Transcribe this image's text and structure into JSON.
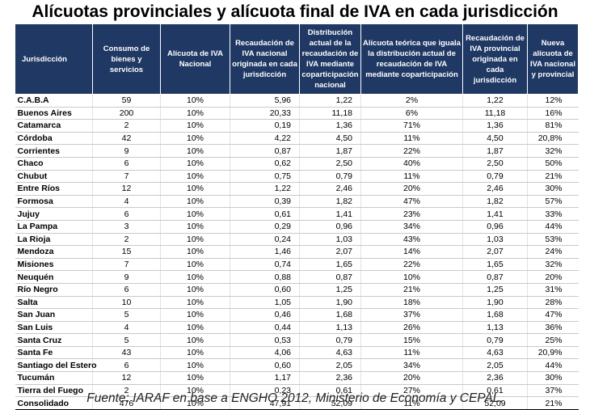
{
  "title": "Alícuotas provinciales y alícuota final de IVA en cada jurisdicción",
  "headers": [
    "Jurisdicción",
    "Consumo de bienes y servicios",
    "Alícuota de IVA Nacional",
    "Recaudación de IVA nacional originada en cada jurisdicción",
    "Distribución actual de la recaudación de IVA mediante coparticipación nacional",
    "Alícuota teórica que iguala la distribución actual de recaudación de IVA mediante coparticipación",
    "Recaudación de IVA provincial originada en cada jurisdicción",
    "Nueva alícuota de IVA nacional y provincial"
  ],
  "rows": [
    {
      "name": "C.A.B.A",
      "consumo": "59",
      "alicuota": "10%",
      "recaudacion": "5,96",
      "distribucion": "1,22",
      "teorica": "2%",
      "provincial": "1,22",
      "nueva": "12%"
    },
    {
      "name": "Buenos Aires",
      "consumo": "200",
      "alicuota": "10%",
      "recaudacion": "20,33",
      "distribucion": "11,18",
      "teorica": "6%",
      "provincial": "11,18",
      "nueva": "16%"
    },
    {
      "name": "Catamarca",
      "consumo": "2",
      "alicuota": "10%",
      "recaudacion": "0,19",
      "distribucion": "1,36",
      "teorica": "71%",
      "provincial": "1,36",
      "nueva": "81%"
    },
    {
      "name": "Córdoba",
      "consumo": "42",
      "alicuota": "10%",
      "recaudacion": "4,22",
      "distribucion": "4,50",
      "teorica": "11%",
      "provincial": "4,50",
      "nueva": "20,8%"
    },
    {
      "name": "Corrientes",
      "consumo": "9",
      "alicuota": "10%",
      "recaudacion": "0,87",
      "distribucion": "1,87",
      "teorica": "22%",
      "provincial": "1,87",
      "nueva": "32%"
    },
    {
      "name": "Chaco",
      "consumo": "6",
      "alicuota": "10%",
      "recaudacion": "0,62",
      "distribucion": "2,50",
      "teorica": "40%",
      "provincial": "2,50",
      "nueva": "50%"
    },
    {
      "name": "Chubut",
      "consumo": "7",
      "alicuota": "10%",
      "recaudacion": "0,75",
      "distribucion": "0,79",
      "teorica": "11%",
      "provincial": "0,79",
      "nueva": "21%"
    },
    {
      "name": "Entre Ríos",
      "consumo": "12",
      "alicuota": "10%",
      "recaudacion": "1,22",
      "distribucion": "2,46",
      "teorica": "20%",
      "provincial": "2,46",
      "nueva": "30%"
    },
    {
      "name": "Formosa",
      "consumo": "4",
      "alicuota": "10%",
      "recaudacion": "0,39",
      "distribucion": "1,82",
      "teorica": "47%",
      "provincial": "1,82",
      "nueva": "57%"
    },
    {
      "name": "Jujuy",
      "consumo": "6",
      "alicuota": "10%",
      "recaudacion": "0,61",
      "distribucion": "1,41",
      "teorica": "23%",
      "provincial": "1,41",
      "nueva": "33%"
    },
    {
      "name": "La Pampa",
      "consumo": "3",
      "alicuota": "10%",
      "recaudacion": "0,29",
      "distribucion": "0,96",
      "teorica": "34%",
      "provincial": "0,96",
      "nueva": "44%"
    },
    {
      "name": "La Rioja",
      "consumo": "2",
      "alicuota": "10%",
      "recaudacion": "0,24",
      "distribucion": "1,03",
      "teorica": "43%",
      "provincial": "1,03",
      "nueva": "53%"
    },
    {
      "name": "Mendoza",
      "consumo": "15",
      "alicuota": "10%",
      "recaudacion": "1,46",
      "distribucion": "2,07",
      "teorica": "14%",
      "provincial": "2,07",
      "nueva": "24%"
    },
    {
      "name": "Misiones",
      "consumo": "7",
      "alicuota": "10%",
      "recaudacion": "0,74",
      "distribucion": "1,65",
      "teorica": "22%",
      "provincial": "1,65",
      "nueva": "32%"
    },
    {
      "name": "Neuquén",
      "consumo": "9",
      "alicuota": "10%",
      "recaudacion": "0,88",
      "distribucion": "0,87",
      "teorica": "10%",
      "provincial": "0,87",
      "nueva": "20%"
    },
    {
      "name": "Río Negro",
      "consumo": "6",
      "alicuota": "10%",
      "recaudacion": "0,60",
      "distribucion": "1,25",
      "teorica": "21%",
      "provincial": "1,25",
      "nueva": "31%"
    },
    {
      "name": "Salta",
      "consumo": "10",
      "alicuota": "10%",
      "recaudacion": "1,05",
      "distribucion": "1,90",
      "teorica": "18%",
      "provincial": "1,90",
      "nueva": "28%"
    },
    {
      "name": "San Juan",
      "consumo": "5",
      "alicuota": "10%",
      "recaudacion": "0,46",
      "distribucion": "1,68",
      "teorica": "37%",
      "provincial": "1,68",
      "nueva": "47%"
    },
    {
      "name": "San Luis",
      "consumo": "4",
      "alicuota": "10%",
      "recaudacion": "0,44",
      "distribucion": "1,13",
      "teorica": "26%",
      "provincial": "1,13",
      "nueva": "36%"
    },
    {
      "name": "Santa Cruz",
      "consumo": "5",
      "alicuota": "10%",
      "recaudacion": "0,53",
      "distribucion": "0,79",
      "teorica": "15%",
      "provincial": "0,79",
      "nueva": "25%"
    },
    {
      "name": "Santa Fe",
      "consumo": "43",
      "alicuota": "10%",
      "recaudacion": "4,06",
      "distribucion": "4,63",
      "teorica": "11%",
      "provincial": "4,63",
      "nueva": "20,9%"
    },
    {
      "name": "Santiago del Estero",
      "consumo": "6",
      "alicuota": "10%",
      "recaudacion": "0,60",
      "distribucion": "2,05",
      "teorica": "34%",
      "provincial": "2,05",
      "nueva": "44%"
    },
    {
      "name": "Tucumán",
      "consumo": "12",
      "alicuota": "10%",
      "recaudacion": "1,17",
      "distribucion": "2,36",
      "teorica": "20%",
      "provincial": "2,36",
      "nueva": "30%"
    },
    {
      "name": "Tierra del Fuego",
      "consumo": "2",
      "alicuota": "10%",
      "recaudacion": "0,23",
      "distribucion": "0,61",
      "teorica": "27%",
      "provincial": "0,61",
      "nueva": "37%"
    }
  ],
  "total": {
    "name": "Consolidado",
    "consumo": "476",
    "alicuota": "10%",
    "recaudacion": "47,91",
    "distribucion": "52,09",
    "teorica": "11%",
    "provincial": "52,09",
    "nueva": "21%"
  },
  "source": "Fuente:  IARAF en base a ENGHO  2012, Ministerio de Economía y CEPAL."
}
